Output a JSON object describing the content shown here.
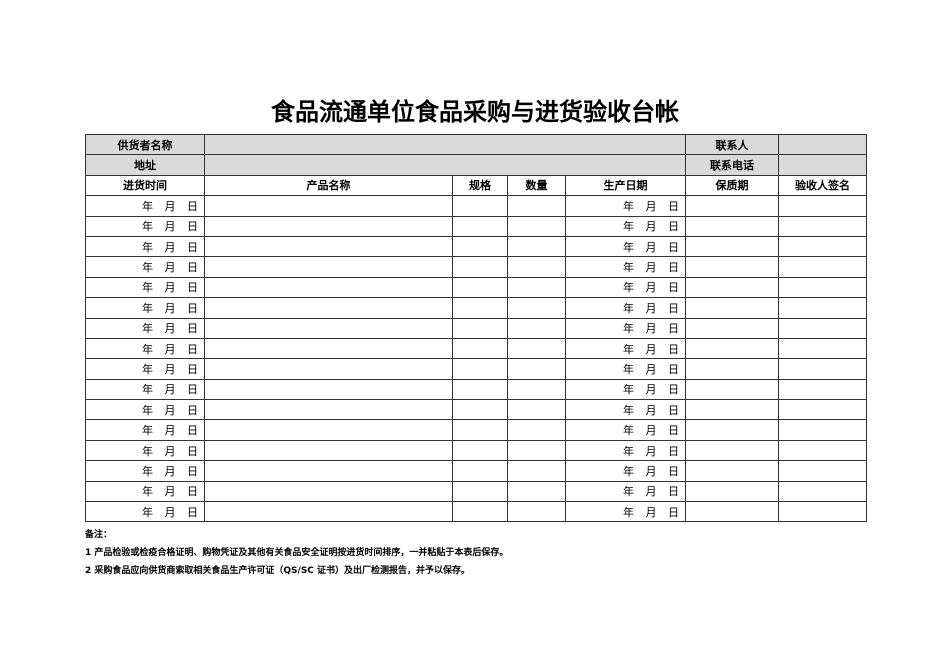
{
  "title": "食品流通单位食品采购与进货验收台帐",
  "header": {
    "supplier_label": "供货者名称",
    "supplier_value": "",
    "contact_label": "联系人",
    "contact_value": "",
    "address_label": "地址",
    "address_value": "",
    "phone_label": "联系电话",
    "phone_value": ""
  },
  "columns": [
    "进货时间",
    "产品名称",
    "规格",
    "数量",
    "生产日期",
    "保质期",
    "验收人签名"
  ],
  "rows": [
    {
      "purchase_date": "年 月 日",
      "production_date": "年 月 日"
    },
    {
      "purchase_date": "年 月 日",
      "production_date": "年 月 日"
    },
    {
      "purchase_date": "年 月 日",
      "production_date": "年 月 日"
    },
    {
      "purchase_date": "年 月 日",
      "production_date": "年 月 日"
    },
    {
      "purchase_date": "年 月 日",
      "production_date": "年 月 日"
    },
    {
      "purchase_date": "年 月 日",
      "production_date": "年 月 日"
    },
    {
      "purchase_date": "年 月 日",
      "production_date": "年 月 日"
    },
    {
      "purchase_date": "年 月 日",
      "production_date": "年 月 日"
    },
    {
      "purchase_date": "年 月 日",
      "production_date": "年 月 日"
    },
    {
      "purchase_date": "年 月 日",
      "production_date": "年 月 日"
    },
    {
      "purchase_date": "年 月 日",
      "production_date": "年 月 日"
    },
    {
      "purchase_date": "年 月 日",
      "production_date": "年 月 日"
    },
    {
      "purchase_date": "年 月 日",
      "production_date": "年 月 日"
    },
    {
      "purchase_date": "年 月 日",
      "production_date": "年 月 日"
    },
    {
      "purchase_date": "年 月 日",
      "production_date": "年 月 日"
    },
    {
      "purchase_date": "年 月 日",
      "production_date": "年 月 日"
    }
  ],
  "notes": {
    "label": "备注：",
    "items": [
      "1 产品检验或检疫合格证明、购物凭证及其他有关食品安全证明按进货时间排序，一并粘贴于本表后保存。",
      "2 采购食品应向供货商索取相关食品生产许可证（QS/SC 证书）及出厂检测报告，并予以保存。"
    ]
  }
}
